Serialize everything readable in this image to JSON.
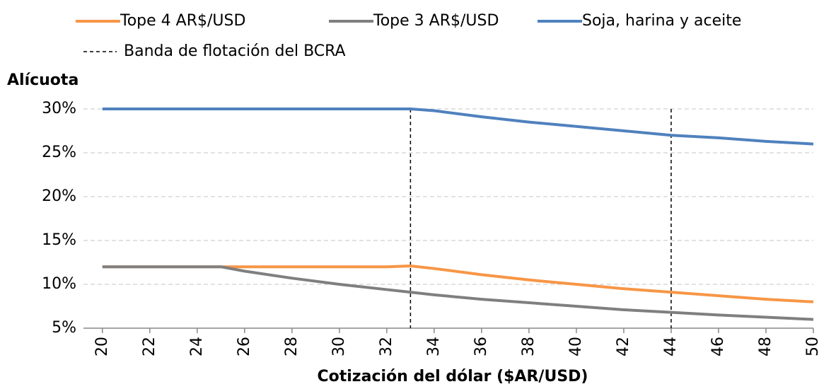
{
  "chart_data": {
    "type": "line",
    "y_axis_title": "Alícuota",
    "x_axis_title": "Cotización del dólar ($AR/USD)",
    "x": [
      20,
      22,
      24,
      25,
      26,
      28,
      30,
      32,
      33,
      34,
      36,
      38,
      40,
      42,
      44,
      46,
      48,
      50
    ],
    "series": [
      {
        "name": "Tope 4 AR$/USD",
        "color": "#f79646",
        "values": [
          12,
          12,
          12,
          12,
          12,
          12,
          12,
          12,
          12.1,
          11.8,
          11.1,
          10.5,
          10,
          9.5,
          9.1,
          8.7,
          8.3,
          8
        ]
      },
      {
        "name": "Tope 3 AR$/USD",
        "color": "#7f7f7f",
        "values": [
          12,
          12,
          12,
          12,
          11.5,
          10.7,
          10,
          9.4,
          9.1,
          8.8,
          8.3,
          7.9,
          7.5,
          7.1,
          6.8,
          6.5,
          6.25,
          6
        ]
      },
      {
        "name": "Soja, harina y  aceite",
        "color": "#4f81bd",
        "values": [
          30,
          30,
          30,
          30,
          30,
          30,
          30,
          30,
          30,
          29.8,
          29.1,
          28.5,
          28,
          27.5,
          27,
          26.7,
          26.3,
          26
        ]
      }
    ],
    "reference_lines": {
      "name": "Banda de flotación del BCRA",
      "x": [
        33,
        44
      ],
      "color": "#000000"
    },
    "xlim": [
      19.2,
      50
    ],
    "xticks": [
      20,
      22,
      24,
      26,
      28,
      30,
      32,
      34,
      36,
      38,
      40,
      42,
      44,
      46,
      48,
      50
    ],
    "ylim": [
      5,
      30
    ],
    "yticks": [
      {
        "value": 5,
        "label": "5%"
      },
      {
        "value": 10,
        "label": "10%"
      },
      {
        "value": 15,
        "label": "15%"
      },
      {
        "value": 20,
        "label": "20%"
      },
      {
        "value": 25,
        "label": "25%"
      },
      {
        "value": 30,
        "label": "30%"
      }
    ],
    "grid": true
  }
}
